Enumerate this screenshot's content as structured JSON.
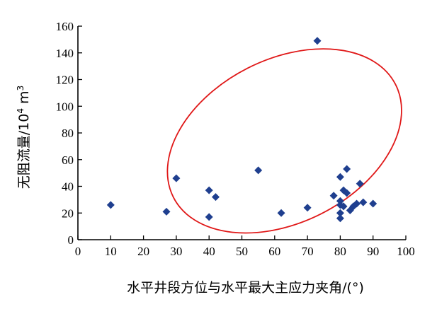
{
  "chart_data": {
    "type": "scatter",
    "xlabel": "水平井段方位与水平最大主应力夹角/(°)",
    "ylabel_main": "无阻流量/10",
    "ylabel_sup": "4",
    "ylabel_unit": " m",
    "ylabel_unit_sup": "3",
    "xlim": [
      0,
      100
    ],
    "ylim": [
      0,
      160
    ],
    "xticks": [
      0,
      10,
      20,
      30,
      40,
      50,
      60,
      70,
      80,
      90,
      100
    ],
    "yticks": [
      0,
      20,
      40,
      60,
      80,
      100,
      120,
      140,
      160
    ],
    "grid": false,
    "legend": "none",
    "marker": "diamond",
    "point_color": "#1f3f8f",
    "annotation_color": "#e01818",
    "annotation": {
      "shape": "ellipse",
      "center": [
        63,
        74
      ],
      "semi_axis_x_units": 38,
      "semi_axis_y_units": 26,
      "rotation_deg": -27
    },
    "points": [
      {
        "x": 10,
        "y": 26
      },
      {
        "x": 27,
        "y": 21
      },
      {
        "x": 30,
        "y": 46
      },
      {
        "x": 40,
        "y": 37
      },
      {
        "x": 40,
        "y": 17
      },
      {
        "x": 42,
        "y": 32
      },
      {
        "x": 55,
        "y": 52
      },
      {
        "x": 62,
        "y": 20
      },
      {
        "x": 70,
        "y": 24
      },
      {
        "x": 73,
        "y": 149
      },
      {
        "x": 78,
        "y": 33
      },
      {
        "x": 80,
        "y": 47
      },
      {
        "x": 80,
        "y": 29
      },
      {
        "x": 80,
        "y": 26
      },
      {
        "x": 80,
        "y": 20
      },
      {
        "x": 80,
        "y": 16
      },
      {
        "x": 81,
        "y": 37
      },
      {
        "x": 81,
        "y": 25
      },
      {
        "x": 82,
        "y": 53
      },
      {
        "x": 82,
        "y": 35
      },
      {
        "x": 83,
        "y": 22
      },
      {
        "x": 84,
        "y": 25
      },
      {
        "x": 85,
        "y": 27
      },
      {
        "x": 86,
        "y": 42
      },
      {
        "x": 87,
        "y": 28
      },
      {
        "x": 90,
        "y": 27
      }
    ]
  }
}
